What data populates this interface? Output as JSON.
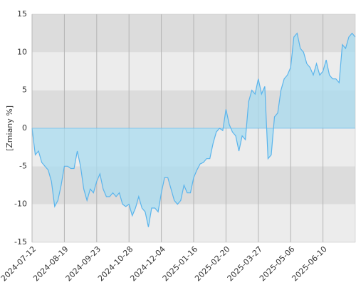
{
  "chart_data": {
    "type": "area",
    "y_label": "[Zmiany %]",
    "categories": [
      "2024-07-12",
      null,
      null,
      null,
      null,
      null,
      null,
      null,
      null,
      null,
      "2024-08-19",
      null,
      null,
      null,
      null,
      null,
      null,
      null,
      null,
      null,
      "2024-09-23",
      null,
      null,
      null,
      null,
      null,
      null,
      null,
      null,
      null,
      "2024-10-28",
      null,
      null,
      null,
      null,
      null,
      null,
      null,
      null,
      null,
      "2024-12-04",
      null,
      null,
      null,
      null,
      null,
      null,
      null,
      null,
      null,
      "2025-01-16",
      null,
      null,
      null,
      null,
      null,
      null,
      null,
      null,
      null,
      "2025-02-20",
      null,
      null,
      null,
      null,
      null,
      null,
      null,
      null,
      null,
      "2025-03-27",
      null,
      null,
      null,
      null,
      null,
      null,
      null,
      null,
      null,
      "2025-05-06",
      null,
      null,
      null,
      null,
      null,
      null,
      null,
      null,
      null,
      "2025-06-10",
      null,
      null,
      null,
      null,
      null,
      null,
      null,
      null,
      null,
      null
    ],
    "values": [
      0,
      -3.5,
      -3,
      -4.5,
      -5,
      -5.5,
      -7,
      -10.3,
      -9.5,
      -7.5,
      -5,
      -5,
      -5.3,
      -5.3,
      -3,
      -5,
      -8,
      -9.5,
      -8,
      -8.5,
      -7,
      -6,
      -8,
      -9,
      -9,
      -8.5,
      -9,
      -8.5,
      -10,
      -10.3,
      -10,
      -11.5,
      -10.5,
      -9,
      -10.5,
      -11,
      -13,
      -10.5,
      -10.5,
      -11,
      -8.5,
      -6.5,
      -6.5,
      -8,
      -9.5,
      -10,
      -9.5,
      -7.5,
      -8.5,
      -8.5,
      -6.5,
      -5.5,
      -4.7,
      -4.5,
      -4,
      -4,
      -2,
      -0.5,
      0,
      -0.3,
      2.5,
      0.5,
      -0.5,
      -1,
      -3,
      -1,
      -1.5,
      3.5,
      5,
      4.5,
      6.5,
      4.5,
      5.5,
      -4,
      -3.5,
      1.5,
      2,
      5,
      6.5,
      7,
      8,
      12,
      12.5,
      10.5,
      10,
      8.5,
      8,
      7,
      8.5,
      7,
      7.5,
      9,
      7,
      6.5,
      6.5,
      6,
      11,
      10.5,
      12,
      12.5,
      12
    ],
    "color": "#5ab4ec",
    "fill": "#a9dcf0",
    "ylim": [
      -15,
      15
    ],
    "yticks": [
      -15,
      -10,
      -5,
      0,
      5,
      10,
      15
    ],
    "band_colors": [
      "#ececec",
      "#dcdcdc"
    ],
    "grid": true
  }
}
